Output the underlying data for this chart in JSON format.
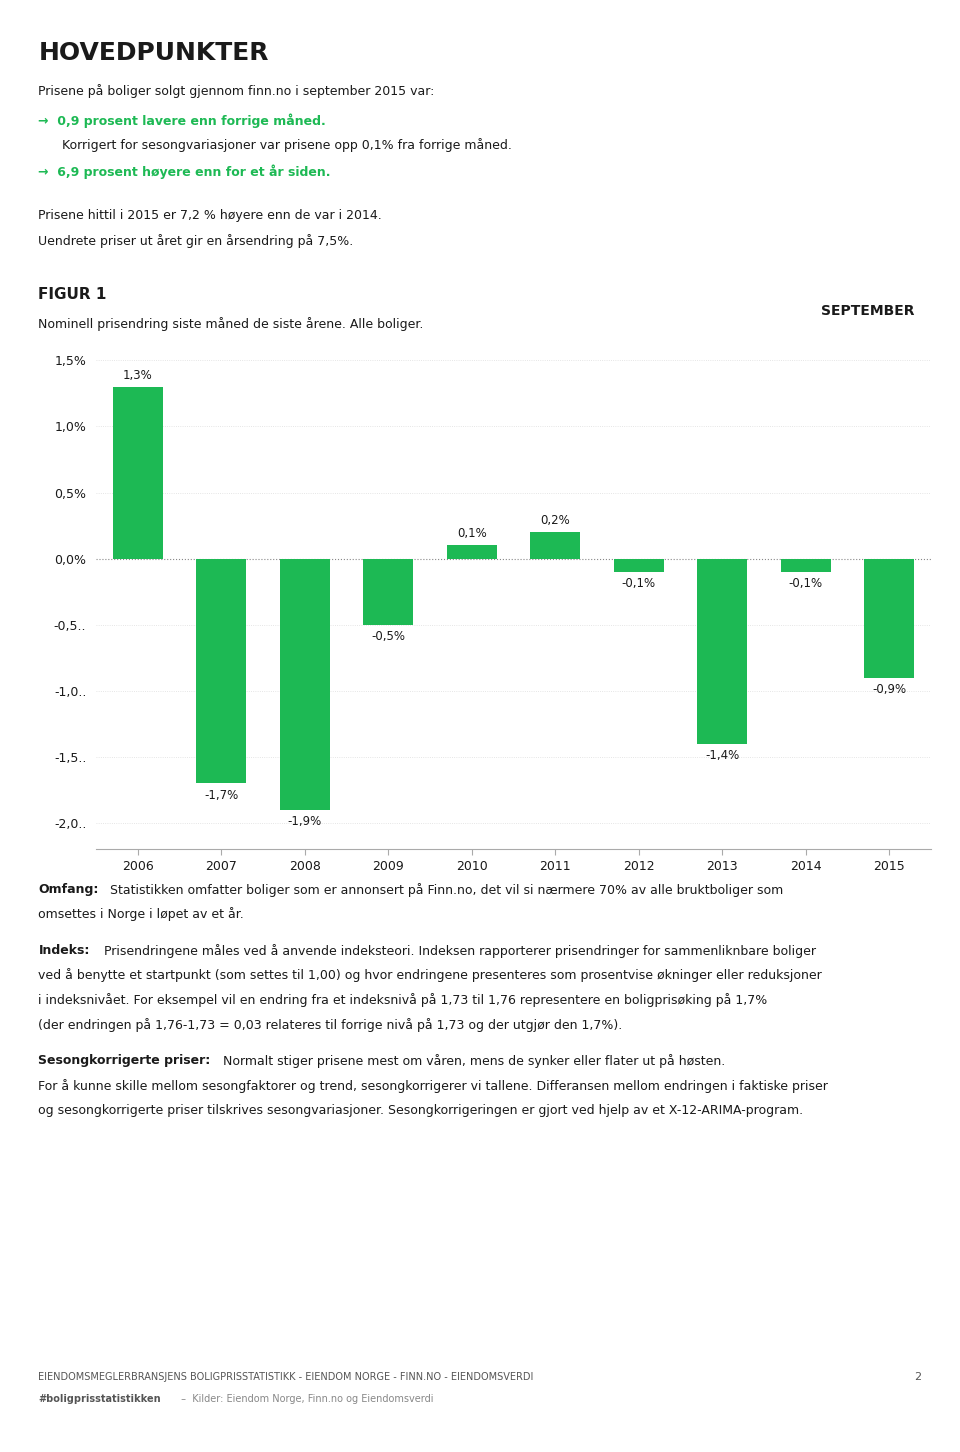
{
  "title_main": "HOVEDPUNKTER",
  "green_color": "#1db954",
  "bar_color": "#1db954",
  "background_color": "#ffffff",
  "text_color": "#1a1a1a",
  "fig1_title": "FIGUR 1",
  "fig1_subtitle": "Nominell prisendring siste måned de siste årene. Alle boliger.",
  "september_label": "SEPTEMBER",
  "years": [
    2006,
    2007,
    2008,
    2009,
    2010,
    2011,
    2012,
    2013,
    2014,
    2015
  ],
  "values": [
    1.3,
    -1.7,
    -1.9,
    -0.5,
    0.1,
    0.2,
    -0.1,
    -1.4,
    -0.1,
    -0.9
  ],
  "ylim": [
    -2.2,
    1.7
  ],
  "yticks": [
    1.5,
    1.0,
    0.5,
    0.0,
    -0.5,
    -1.0,
    -1.5,
    -2.0
  ],
  "ytick_labels": [
    "1,5%",
    "1,0%",
    "0,5%",
    "0,0%",
    "-0,5..",
    "-1,0..",
    "-1,5..",
    "-2,0.."
  ]
}
